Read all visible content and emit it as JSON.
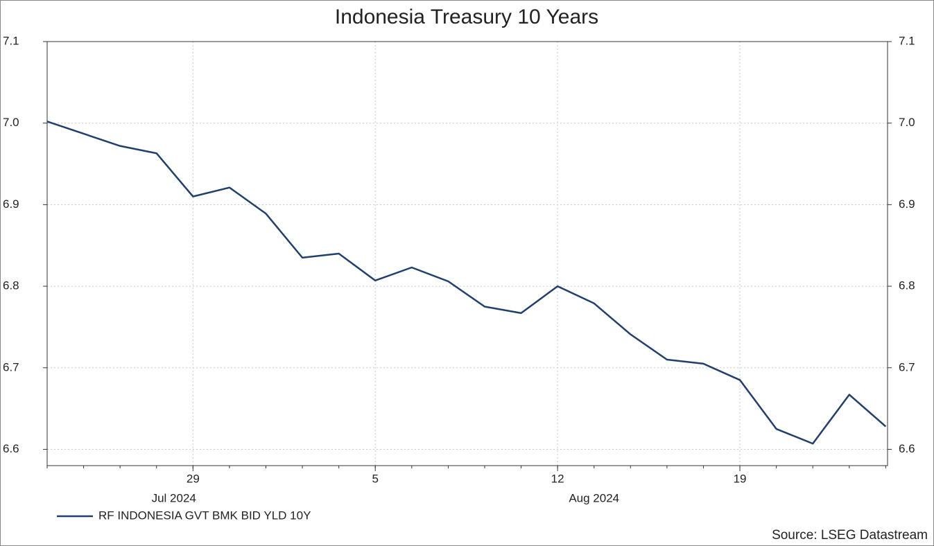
{
  "chart_data": {
    "type": "line",
    "title": "Indonesia Treasury 10 Years",
    "x": [
      "2024-07-23",
      "2024-07-24",
      "2024-07-25",
      "2024-07-26",
      "2024-07-29",
      "2024-07-30",
      "2024-07-31",
      "2024-08-01",
      "2024-08-02",
      "2024-08-05",
      "2024-08-06",
      "2024-08-07",
      "2024-08-08",
      "2024-08-09",
      "2024-08-12",
      "2024-08-13",
      "2024-08-14",
      "2024-08-15",
      "2024-08-16",
      "2024-08-19",
      "2024-08-20",
      "2024-08-21",
      "2024-08-22",
      "2024-08-23"
    ],
    "series": [
      {
        "name": "RF INDONESIA GVT BMK BID YLD 10Y",
        "color": "#1f3f6e",
        "values": [
          7.002,
          6.987,
          6.972,
          6.963,
          6.91,
          6.921,
          6.889,
          6.835,
          6.84,
          6.807,
          6.823,
          6.806,
          6.775,
          6.767,
          6.8,
          6.779,
          6.741,
          6.71,
          6.705,
          6.685,
          6.625,
          6.607,
          6.667,
          6.628
        ]
      }
    ],
    "xticks": [
      {
        "value": "2024-07-29",
        "label": "29"
      },
      {
        "value": "2024-08-05",
        "label": "5"
      },
      {
        "value": "2024-08-12",
        "label": "12"
      },
      {
        "value": "2024-08-19",
        "label": "19"
      }
    ],
    "x_groups": [
      {
        "value": "2024-07",
        "label": "Jul 2024"
      },
      {
        "value": "2024-08",
        "label": "Aug 2024"
      }
    ],
    "ylim": [
      6.58,
      7.1
    ],
    "yticks": [
      {
        "value": 6.6,
        "label": "6.6"
      },
      {
        "value": 6.7,
        "label": "6.7"
      },
      {
        "value": 6.8,
        "label": "6.8"
      },
      {
        "value": 6.9,
        "label": "6.9"
      },
      {
        "value": 7.0,
        "label": "7.0"
      },
      {
        "value": 7.1,
        "label": "7.1"
      }
    ],
    "mirror_y_axis": true,
    "grid": true,
    "source": "Source: LSEG Datastream"
  }
}
